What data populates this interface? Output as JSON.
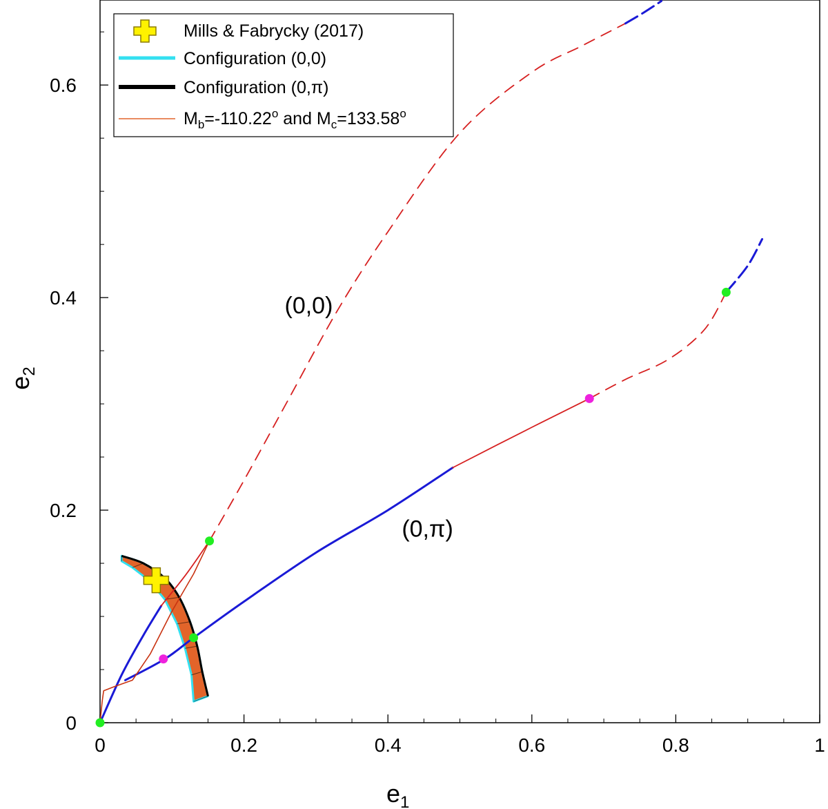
{
  "chart_data": {
    "type": "line",
    "title": "",
    "xlabel": "e",
    "xlabel_sub": "1",
    "ylabel": "e",
    "ylabel_sub": "2",
    "xlim": [
      0,
      1
    ],
    "ylim": [
      0,
      0.68
    ],
    "x_ticks": [
      {
        "value": 0,
        "label": "0"
      },
      {
        "value": 0.2,
        "label": "0.2"
      },
      {
        "value": 0.4,
        "label": "0.4"
      },
      {
        "value": 0.6,
        "label": "0.6"
      },
      {
        "value": 0.8,
        "label": "0.8"
      },
      {
        "value": 1,
        "label": "1"
      }
    ],
    "y_ticks": [
      {
        "value": 0,
        "label": "0"
      },
      {
        "value": 0.2,
        "label": "0.2"
      },
      {
        "value": 0.4,
        "label": "0.4"
      },
      {
        "value": 0.6,
        "label": "0.6"
      }
    ],
    "legend": {
      "placement": "top-left",
      "entries": [
        {
          "kind": "marker-cross",
          "color": "#FFF200",
          "text": "Mills & Fabrycky (2017)"
        },
        {
          "kind": "line",
          "color": "#33E0F0",
          "text": "Configuration (0,0)"
        },
        {
          "kind": "line",
          "color": "#000000",
          "text": "Configuration (0,π)"
        },
        {
          "kind": "line",
          "color": "#E2642A",
          "text_parts": [
            "M",
            "b",
            "=-110.22",
            "o",
            " and M",
            "c",
            "=133.58",
            "o"
          ]
        }
      ]
    },
    "annotations": [
      {
        "text": "(0,0)",
        "x": 0.29,
        "y": 0.385
      },
      {
        "text": "(0,π)",
        "x": 0.455,
        "y": 0.175
      }
    ],
    "series": [
      {
        "name": "(0,0) family blue solid",
        "color": "#1A1AD6",
        "style": "solid",
        "points": [
          [
            0,
            0
          ],
          [
            0.03,
            0.045
          ],
          [
            0.06,
            0.082
          ],
          [
            0.085,
            0.11
          ]
        ]
      },
      {
        "name": "(0,0) family red solid",
        "color": "#D62020",
        "style": "solid",
        "points": [
          [
            0.085,
            0.11
          ],
          [
            0.12,
            0.14
          ],
          [
            0.152,
            0.171
          ]
        ]
      },
      {
        "name": "(0,0) family red dashed",
        "color": "#D62020",
        "style": "dashed",
        "points": [
          [
            0.152,
            0.171
          ],
          [
            0.2,
            0.228
          ],
          [
            0.26,
            0.302
          ],
          [
            0.33,
            0.388
          ],
          [
            0.4,
            0.462
          ],
          [
            0.5,
            0.555
          ],
          [
            0.6,
            0.612
          ],
          [
            0.67,
            0.637
          ],
          [
            0.73,
            0.658
          ]
        ]
      },
      {
        "name": "(0,0) family blue dashed",
        "color": "#1A1AD6",
        "style": "dashed",
        "points": [
          [
            0.73,
            0.658
          ],
          [
            0.755,
            0.668
          ],
          [
            0.78,
            0.679
          ]
        ]
      },
      {
        "name": "(0,π) family blue solid",
        "color": "#1A1AD6",
        "style": "solid",
        "points": [
          [
            0.035,
            0.04
          ],
          [
            0.09,
            0.06
          ],
          [
            0.13,
            0.08
          ],
          [
            0.2,
            0.114
          ],
          [
            0.3,
            0.16
          ],
          [
            0.4,
            0.2
          ],
          [
            0.49,
            0.24
          ]
        ]
      },
      {
        "name": "(0,π) family red solid",
        "color": "#D62020",
        "style": "solid",
        "points": [
          [
            0.49,
            0.24
          ],
          [
            0.6,
            0.278
          ],
          [
            0.68,
            0.305
          ]
        ]
      },
      {
        "name": "(0,π) family red dashed",
        "color": "#D62020",
        "style": "dashed",
        "points": [
          [
            0.68,
            0.305
          ],
          [
            0.73,
            0.323
          ],
          [
            0.79,
            0.342
          ],
          [
            0.84,
            0.37
          ],
          [
            0.87,
            0.405
          ]
        ]
      },
      {
        "name": "(0,π) family blue dashed",
        "color": "#1A1AD6",
        "style": "dashed",
        "points": [
          [
            0.87,
            0.405
          ],
          [
            0.9,
            0.43
          ],
          [
            0.92,
            0.455
          ]
        ]
      },
      {
        "name": "Mb/Mc trajectory",
        "color": "#C83210",
        "style": "thin",
        "points": [
          [
            0,
            0
          ],
          [
            0.003,
            0.02
          ],
          [
            0.005,
            0.03
          ],
          [
            0.02,
            0.034
          ],
          [
            0.045,
            0.04
          ],
          [
            0.07,
            0.065
          ],
          [
            0.1,
            0.105
          ],
          [
            0.13,
            0.14
          ],
          [
            0.152,
            0.171
          ]
        ]
      }
    ],
    "regions": [
      {
        "name": "(0,π) configuration band",
        "fill": "#E2642A",
        "edge": "#000000",
        "outline": "#33E0F0",
        "outer": [
          [
            0.03,
            0.157
          ],
          [
            0.06,
            0.15
          ],
          [
            0.09,
            0.136
          ],
          [
            0.11,
            0.118
          ],
          [
            0.125,
            0.095
          ],
          [
            0.135,
            0.072
          ],
          [
            0.142,
            0.048
          ],
          [
            0.15,
            0.025
          ]
        ],
        "inner": [
          [
            0.13,
            0.02
          ],
          [
            0.127,
            0.045
          ],
          [
            0.118,
            0.07
          ],
          [
            0.107,
            0.093
          ],
          [
            0.09,
            0.116
          ],
          [
            0.068,
            0.134
          ],
          [
            0.045,
            0.146
          ],
          [
            0.03,
            0.152
          ]
        ]
      }
    ],
    "points": [
      {
        "x": 0,
        "y": 0,
        "color": "#22EE22",
        "series": "equilibrium"
      },
      {
        "x": 0.152,
        "y": 0.171,
        "color": "#22EE22",
        "series": "equilibrium"
      },
      {
        "x": 0.13,
        "y": 0.08,
        "color": "#22EE22",
        "series": "equilibrium"
      },
      {
        "x": 0.87,
        "y": 0.405,
        "color": "#22EE22",
        "series": "equilibrium"
      },
      {
        "x": 0.088,
        "y": 0.06,
        "color": "#EE22DD",
        "series": "transition"
      },
      {
        "x": 0.68,
        "y": 0.305,
        "color": "#EE22DD",
        "series": "transition"
      }
    ],
    "marker": {
      "label": "Mills & Fabrycky (2017)",
      "x": 0.078,
      "y": 0.134,
      "color": "#FFF200"
    }
  }
}
